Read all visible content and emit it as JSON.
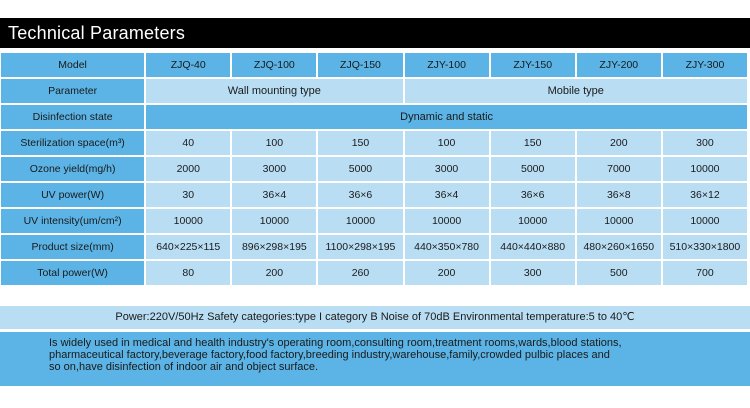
{
  "title": "Technical Parameters",
  "header": {
    "label": "Model",
    "models": [
      "ZJQ-40",
      "ZJQ-100",
      "ZJQ-150",
      "ZJY-100",
      "ZJY-150",
      "ZJY-200",
      "ZJY-300"
    ]
  },
  "parameter_row": {
    "label": "Parameter",
    "wall": "Wall mounting type",
    "mobile": "Mobile type"
  },
  "disinfection_row": {
    "label": "Disinfection state",
    "value": "Dynamic and static"
  },
  "rows": [
    {
      "label": "Sterilization space(m³)",
      "values": [
        "40",
        "100",
        "150",
        "100",
        "150",
        "200",
        "300"
      ]
    },
    {
      "label": "Ozone yield(mg/h)",
      "values": [
        "2000",
        "3000",
        "5000",
        "3000",
        "5000",
        "7000",
        "10000"
      ]
    },
    {
      "label": "UV power(W)",
      "values": [
        "30",
        "36×4",
        "36×6",
        "36×4",
        "36×6",
        "36×8",
        "36×12"
      ]
    },
    {
      "label": "UV intensity(um/cm²)",
      "values": [
        "10000",
        "10000",
        "10000",
        "10000",
        "10000",
        "10000",
        "10000"
      ]
    },
    {
      "label": "Product size(mm)",
      "values": [
        "640×225×115",
        "896×298×195",
        "1100×298×195",
        "440×350×780",
        "440×440×880",
        "480×260×1650",
        "510×330×1800"
      ]
    },
    {
      "label": "Total power(W)",
      "values": [
        "80",
        "200",
        "260",
        "200",
        "300",
        "500",
        "700"
      ]
    }
  ],
  "footer": "Power:220V/50Hz   Safety categories:type I category B   Noise of 70dB    Environmental temperature:5 to 40℃",
  "description": [
    "Is widely used in medical and health industry's operating room,consulting room,treatment rooms,wards,blood stations,",
    "pharmaceutical factory,beverage factory,food factory,breeding industry,warehouse,family,crowded pulbic places and",
    "so on,have disinfection of indoor air and object surface."
  ]
}
